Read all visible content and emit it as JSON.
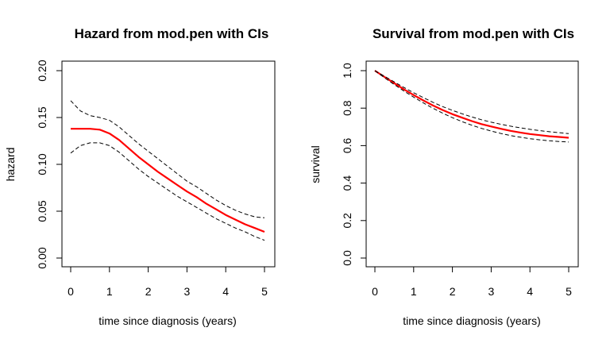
{
  "chart_data": [
    {
      "type": "line",
      "title": "Hazard from mod.pen with CIs",
      "xlabel": "time since diagnosis (years)",
      "ylabel": "hazard",
      "xlim": [
        0,
        5
      ],
      "ylim": [
        0,
        0.2
      ],
      "x_ticks": [
        "0",
        "1",
        "2",
        "3",
        "4",
        "5"
      ],
      "y_ticks": [
        "0.00",
        "0.05",
        "0.10",
        "0.15",
        "0.20"
      ],
      "grid": false,
      "series": [
        {
          "role": "estimate",
          "color": "#ff0000",
          "x": [
            0,
            0.25,
            0.5,
            0.75,
            1,
            1.25,
            1.5,
            1.75,
            2,
            2.25,
            2.5,
            2.75,
            3,
            3.25,
            3.5,
            3.75,
            4,
            4.25,
            4.5,
            4.75,
            5
          ],
          "y": [
            0.138,
            0.138,
            0.138,
            0.137,
            0.133,
            0.126,
            0.117,
            0.108,
            0.1,
            0.092,
            0.085,
            0.078,
            0.071,
            0.065,
            0.058,
            0.052,
            0.046,
            0.041,
            0.036,
            0.032,
            0.028
          ]
        },
        {
          "role": "upper-ci",
          "color": "#000000",
          "x": [
            0,
            0.25,
            0.5,
            0.75,
            1,
            1.25,
            1.5,
            1.75,
            2,
            2.25,
            2.5,
            2.75,
            3,
            3.25,
            3.5,
            3.75,
            4,
            4.25,
            4.5,
            4.75,
            5
          ],
          "y": [
            0.168,
            0.157,
            0.152,
            0.15,
            0.147,
            0.14,
            0.131,
            0.122,
            0.114,
            0.106,
            0.098,
            0.09,
            0.082,
            0.076,
            0.069,
            0.062,
            0.056,
            0.051,
            0.047,
            0.044,
            0.043
          ]
        },
        {
          "role": "lower-ci",
          "color": "#000000",
          "x": [
            0,
            0.25,
            0.5,
            0.75,
            1,
            1.25,
            1.5,
            1.75,
            2,
            2.25,
            2.5,
            2.75,
            3,
            3.25,
            3.5,
            3.75,
            4,
            4.25,
            4.5,
            4.75,
            5
          ],
          "y": [
            0.112,
            0.12,
            0.123,
            0.123,
            0.12,
            0.113,
            0.104,
            0.095,
            0.087,
            0.08,
            0.073,
            0.066,
            0.06,
            0.054,
            0.048,
            0.042,
            0.037,
            0.032,
            0.028,
            0.023,
            0.019
          ]
        }
      ]
    },
    {
      "type": "line",
      "title": "Survival from mod.pen with CIs",
      "xlabel": "time since diagnosis (years)",
      "ylabel": "survival",
      "xlim": [
        0,
        5
      ],
      "ylim": [
        0,
        1
      ],
      "x_ticks": [
        "0",
        "1",
        "2",
        "3",
        "4",
        "5"
      ],
      "y_ticks": [
        "0.0",
        "0.2",
        "0.4",
        "0.6",
        "0.8",
        "1.0"
      ],
      "grid": false,
      "series": [
        {
          "role": "estimate",
          "color": "#ff0000",
          "x": [
            0,
            0.25,
            0.5,
            0.75,
            1,
            1.25,
            1.5,
            1.75,
            2,
            2.25,
            2.5,
            2.75,
            3,
            3.25,
            3.5,
            3.75,
            4,
            4.25,
            4.5,
            4.75,
            5
          ],
          "y": [
            1.0,
            0.966,
            0.933,
            0.9,
            0.87,
            0.841,
            0.814,
            0.79,
            0.768,
            0.749,
            0.731,
            0.715,
            0.702,
            0.69,
            0.679,
            0.67,
            0.662,
            0.656,
            0.65,
            0.646,
            0.642
          ]
        },
        {
          "role": "upper-ci",
          "color": "#000000",
          "x": [
            0,
            0.25,
            0.5,
            0.75,
            1,
            1.25,
            1.5,
            1.75,
            2,
            2.25,
            2.5,
            2.75,
            3,
            3.25,
            3.5,
            3.75,
            4,
            4.25,
            4.5,
            4.75,
            5
          ],
          "y": [
            1.0,
            0.97,
            0.94,
            0.91,
            0.882,
            0.856,
            0.831,
            0.808,
            0.788,
            0.77,
            0.753,
            0.738,
            0.725,
            0.714,
            0.704,
            0.695,
            0.687,
            0.68,
            0.674,
            0.669,
            0.664
          ]
        },
        {
          "role": "lower-ci",
          "color": "#000000",
          "x": [
            0,
            0.25,
            0.5,
            0.75,
            1,
            1.25,
            1.5,
            1.75,
            2,
            2.25,
            2.5,
            2.75,
            3,
            3.25,
            3.5,
            3.75,
            4,
            4.25,
            4.5,
            4.75,
            5
          ],
          "y": [
            1.0,
            0.962,
            0.926,
            0.891,
            0.859,
            0.828,
            0.799,
            0.773,
            0.749,
            0.728,
            0.709,
            0.692,
            0.678,
            0.665,
            0.654,
            0.645,
            0.637,
            0.631,
            0.626,
            0.622,
            0.619
          ]
        }
      ]
    }
  ]
}
